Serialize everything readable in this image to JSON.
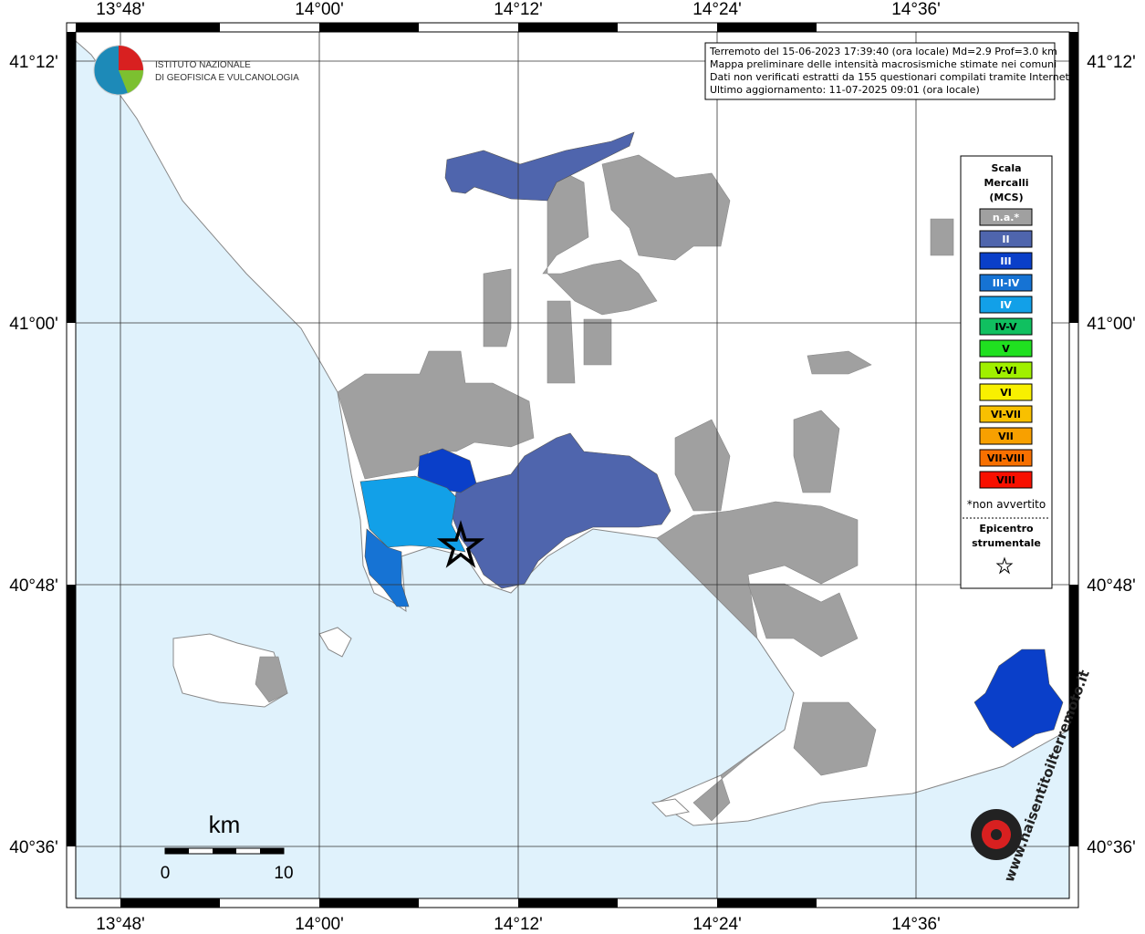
{
  "map": {
    "longitude_labels": [
      "13°48'",
      "14°00'",
      "14°12'",
      "14°24'",
      "14°36'"
    ],
    "latitude_labels": [
      "41°12'",
      "41°00'",
      "40°48'",
      "40°36'"
    ],
    "info": [
      "Terremoto del 15-06-2023 17:39:40 (ora locale) Md=2.9 Prof=3.0 km",
      "Mappa preliminare delle intensità macrosismiche stimate nei comuni",
      "Dati non verificati estratti da 155 questionari compilati tramite Internet.",
      "Ultimo aggiornamento: 11-07-2025 09:01 (ora locale)"
    ],
    "logo": [
      "ISTITUTO NAZIONALE",
      "DI GEOFISICA E VULCANOLOGIA"
    ],
    "legend": {
      "title": [
        "Scala",
        "Mercalli",
        "(MCS)"
      ],
      "items": [
        {
          "label": "n.a.*",
          "color": "#a0a0a0",
          "text_color": "#ffffff"
        },
        {
          "label": "II",
          "color": "#4f65ad",
          "text_color": "#ffffff"
        },
        {
          "label": "III",
          "color": "#0a3fc9",
          "text_color": "#ffffff"
        },
        {
          "label": "III-IV",
          "color": "#1673d4",
          "text_color": "#ffffff"
        },
        {
          "label": "IV",
          "color": "#12a0e8",
          "text_color": "#ffffff"
        },
        {
          "label": "IV-V",
          "color": "#10c060",
          "text_color": "#000000"
        },
        {
          "label": "V",
          "color": "#20e020",
          "text_color": "#000000"
        },
        {
          "label": "V-VI",
          "color": "#a0f000",
          "text_color": "#000000"
        },
        {
          "label": "VI",
          "color": "#f8f000",
          "text_color": "#000000"
        },
        {
          "label": "VI-VII",
          "color": "#f8c000",
          "text_color": "#000000"
        },
        {
          "label": "VII",
          "color": "#f8a000",
          "text_color": "#000000"
        },
        {
          "label": "VII-VIII",
          "color": "#f87000",
          "text_color": "#000000"
        },
        {
          "label": "VIII",
          "color": "#f81000",
          "text_color": "#000000"
        }
      ],
      "note": "*non avvertito",
      "epicenter": [
        "Epicentro",
        "strumentale"
      ]
    },
    "scale_bar": {
      "unit": "km",
      "labels": [
        "0",
        "10"
      ]
    },
    "watermark": "www.haisentitoilterremoto.it"
  }
}
